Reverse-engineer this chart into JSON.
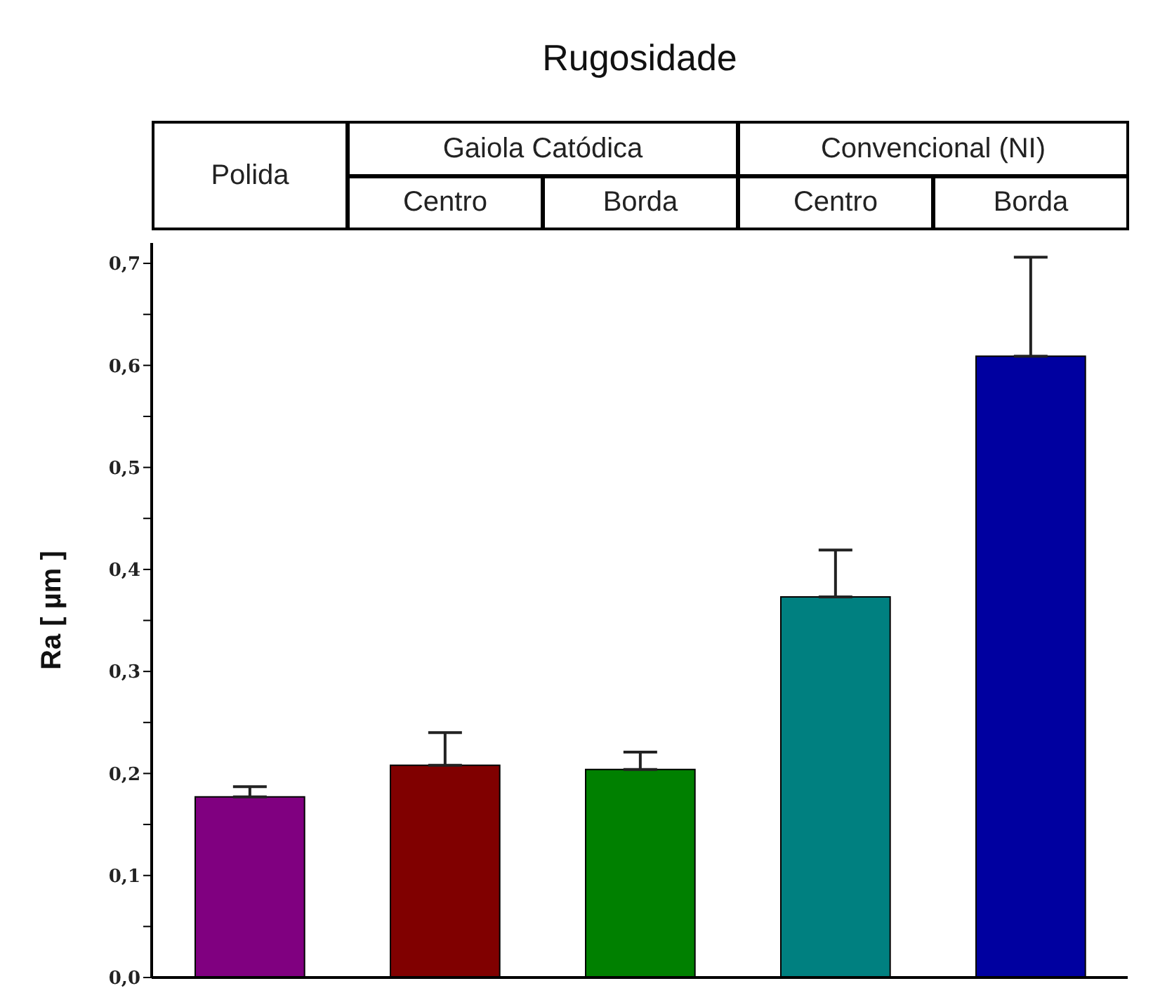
{
  "chart_data": {
    "type": "bar",
    "title": "Rugosidade",
    "ylabel": "Ra [ µm ]",
    "categories": [
      "Polida",
      "Centro",
      "Borda",
      "Centro",
      "Borda"
    ],
    "annotations": [
      "Gaiola Catódica",
      "Convencional (NI)"
    ],
    "values": [
      0.177,
      0.208,
      0.204,
      0.373,
      0.609
    ],
    "errors": [
      [
        0.177,
        0.187
      ],
      [
        0.208,
        0.24
      ],
      [
        0.204,
        0.221
      ],
      [
        0.373,
        0.419
      ],
      [
        0.609,
        0.706
      ]
    ],
    "colors": [
      "#800080",
      "#800000",
      "#008000",
      "#008080",
      "#0000a0"
    ],
    "ylim": [
      0,
      0.72
    ],
    "yticks": [
      {
        "value": 0,
        "label": "0,0"
      },
      {
        "value": 0.05,
        "label": null
      },
      {
        "value": 0.1,
        "label": "0,1"
      },
      {
        "value": 0.15,
        "label": null
      },
      {
        "value": 0.2,
        "label": "0,2"
      },
      {
        "value": 0.25,
        "label": null
      },
      {
        "value": 0.3,
        "label": "0,3"
      },
      {
        "value": 0.35,
        "label": null
      },
      {
        "value": 0.4,
        "label": "0,4"
      },
      {
        "value": 0.45,
        "label": null
      },
      {
        "value": 0.5,
        "label": "0,5"
      },
      {
        "value": 0.55,
        "label": null
      },
      {
        "value": 0.6,
        "label": "0,6"
      },
      {
        "value": 0.65,
        "label": null
      },
      {
        "value": 0.7,
        "label": "0,7"
      }
    ],
    "grid": false,
    "legend": false
  }
}
